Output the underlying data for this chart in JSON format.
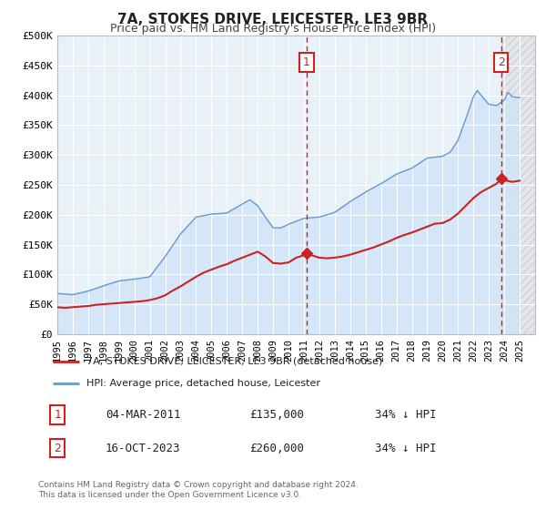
{
  "title": "7A, STOKES DRIVE, LEICESTER, LE3 9BR",
  "subtitle": "Price paid vs. HM Land Registry's House Price Index (HPI)",
  "background_color": "#ffffff",
  "plot_bg_color": "#e8f0f8",
  "grid_color": "#ffffff",
  "hpi_color": "#6699cc",
  "hpi_fill_color": "#d0e4f7",
  "price_color": "#cc2222",
  "marker_color": "#cc2222",
  "vline_color": "#cc2222",
  "annotation_box_color": "#cc2222",
  "ylim": [
    0,
    500000
  ],
  "xlim_start": 1995.0,
  "xlim_end": 2026.0,
  "yticks": [
    0,
    50000,
    100000,
    150000,
    200000,
    250000,
    300000,
    350000,
    400000,
    450000,
    500000
  ],
  "ytick_labels": [
    "£0",
    "£50K",
    "£100K",
    "£150K",
    "£200K",
    "£250K",
    "£300K",
    "£350K",
    "£400K",
    "£450K",
    "£500K"
  ],
  "xticks": [
    1995,
    1996,
    1997,
    1998,
    1999,
    2000,
    2001,
    2002,
    2003,
    2004,
    2005,
    2006,
    2007,
    2008,
    2009,
    2010,
    2011,
    2012,
    2013,
    2014,
    2015,
    2016,
    2017,
    2018,
    2019,
    2020,
    2021,
    2022,
    2023,
    2024,
    2025,
    2026
  ],
  "sale1_x": 2011.17,
  "sale1_y": 135000,
  "sale1_label": "1",
  "sale1_date": "04-MAR-2011",
  "sale1_price": "£135,000",
  "sale1_hpi": "34% ↓ HPI",
  "sale2_x": 2023.79,
  "sale2_y": 260000,
  "sale2_label": "2",
  "sale2_date": "16-OCT-2023",
  "sale2_price": "£260,000",
  "sale2_hpi": "34% ↓ HPI",
  "legend_label1": "7A, STOKES DRIVE, LEICESTER, LE3 9BR (detached house)",
  "legend_label2": "HPI: Average price, detached house, Leicester",
  "footer1": "Contains HM Land Registry data © Crown copyright and database right 2024.",
  "footer2": "This data is licensed under the Open Government Licence v3.0.",
  "hpi_data_x": [
    1995.0,
    1995.08,
    1995.17,
    1995.25,
    1995.33,
    1995.42,
    1995.5,
    1995.58,
    1995.67,
    1995.75,
    1995.83,
    1995.92,
    1996.0,
    1996.08,
    1996.17,
    1996.25,
    1996.33,
    1996.42,
    1996.5,
    1996.58,
    1996.67,
    1996.75,
    1996.83,
    1996.92,
    1997.0,
    1997.08,
    1997.17,
    1997.25,
    1997.33,
    1997.42,
    1997.5,
    1997.58,
    1997.67,
    1997.75,
    1997.83,
    1997.92,
    1998.0,
    1998.08,
    1998.17,
    1998.25,
    1998.33,
    1998.42,
    1998.5,
    1998.58,
    1998.67,
    1998.75,
    1998.83,
    1998.92,
    1999.0,
    1999.08,
    1999.17,
    1999.25,
    1999.33,
    1999.42,
    1999.5,
    1999.58,
    1999.67,
    1999.75,
    1999.83,
    1999.92,
    2000.0,
    2000.08,
    2000.17,
    2000.25,
    2000.33,
    2000.42,
    2000.5,
    2000.58,
    2000.67,
    2000.75,
    2000.83,
    2000.92,
    2001.0,
    2001.08,
    2001.17,
    2001.25,
    2001.33,
    2001.42,
    2001.5,
    2001.58,
    2001.67,
    2001.75,
    2001.83,
    2001.92,
    2002.0,
    2002.08,
    2002.17,
    2002.25,
    2002.33,
    2002.42,
    2002.5,
    2002.58,
    2002.67,
    2002.75,
    2002.83,
    2002.92,
    2003.0,
    2003.08,
    2003.17,
    2003.25,
    2003.33,
    2003.42,
    2003.5,
    2003.58,
    2003.67,
    2003.75,
    2003.83,
    2003.92,
    2004.0,
    2004.08,
    2004.17,
    2004.25,
    2004.33,
    2004.42,
    2004.5,
    2004.58,
    2004.67,
    2004.75,
    2004.83,
    2004.92,
    2005.0,
    2005.08,
    2005.17,
    2005.25,
    2005.33,
    2005.42,
    2005.5,
    2005.58,
    2005.67,
    2005.75,
    2005.83,
    2005.92,
    2006.0,
    2006.08,
    2006.17,
    2006.25,
    2006.33,
    2006.42,
    2006.5,
    2006.58,
    2006.67,
    2006.75,
    2006.83,
    2006.92,
    2007.0,
    2007.08,
    2007.17,
    2007.25,
    2007.33,
    2007.42,
    2007.5,
    2007.58,
    2007.67,
    2007.75,
    2007.83,
    2007.92,
    2008.0,
    2008.08,
    2008.17,
    2008.25,
    2008.33,
    2008.42,
    2008.5,
    2008.58,
    2008.67,
    2008.75,
    2008.83,
    2008.92,
    2009.0,
    2009.08,
    2009.17,
    2009.25,
    2009.33,
    2009.42,
    2009.5,
    2009.58,
    2009.67,
    2009.75,
    2009.83,
    2009.92,
    2010.0,
    2010.08,
    2010.17,
    2010.25,
    2010.33,
    2010.42,
    2010.5,
    2010.58,
    2010.67,
    2010.75,
    2010.83,
    2010.92,
    2011.0,
    2011.08,
    2011.17,
    2011.25,
    2011.33,
    2011.42,
    2011.5,
    2011.58,
    2011.67,
    2011.75,
    2011.83,
    2011.92,
    2012.0,
    2012.08,
    2012.17,
    2012.25,
    2012.33,
    2012.42,
    2012.5,
    2012.58,
    2012.67,
    2012.75,
    2012.83,
    2012.92,
    2013.0,
    2013.08,
    2013.17,
    2013.25,
    2013.33,
    2013.42,
    2013.5,
    2013.58,
    2013.67,
    2013.75,
    2013.83,
    2013.92,
    2014.0,
    2014.08,
    2014.17,
    2014.25,
    2014.33,
    2014.42,
    2014.5,
    2014.58,
    2014.67,
    2014.75,
    2014.83,
    2014.92,
    2015.0,
    2015.08,
    2015.17,
    2015.25,
    2015.33,
    2015.42,
    2015.5,
    2015.58,
    2015.67,
    2015.75,
    2015.83,
    2015.92,
    2016.0,
    2016.08,
    2016.17,
    2016.25,
    2016.33,
    2016.42,
    2016.5,
    2016.58,
    2016.67,
    2016.75,
    2016.83,
    2016.92,
    2017.0,
    2017.08,
    2017.17,
    2017.25,
    2017.33,
    2017.42,
    2017.5,
    2017.58,
    2017.67,
    2017.75,
    2017.83,
    2017.92,
    2018.0,
    2018.08,
    2018.17,
    2018.25,
    2018.33,
    2018.42,
    2018.5,
    2018.58,
    2018.67,
    2018.75,
    2018.83,
    2018.92,
    2019.0,
    2019.08,
    2019.17,
    2019.25,
    2019.33,
    2019.42,
    2019.5,
    2019.58,
    2019.67,
    2019.75,
    2019.83,
    2019.92,
    2020.0,
    2020.08,
    2020.17,
    2020.25,
    2020.33,
    2020.42,
    2020.5,
    2020.58,
    2020.67,
    2020.75,
    2020.83,
    2020.92,
    2021.0,
    2021.08,
    2021.17,
    2021.25,
    2021.33,
    2021.42,
    2021.5,
    2021.58,
    2021.67,
    2021.75,
    2021.83,
    2021.92,
    2022.0,
    2022.08,
    2022.17,
    2022.25,
    2022.33,
    2022.42,
    2022.5,
    2022.58,
    2022.67,
    2022.75,
    2022.83,
    2022.92,
    2023.0,
    2023.08,
    2023.17,
    2023.25,
    2023.33,
    2023.42,
    2023.5,
    2023.58,
    2023.67,
    2023.75,
    2023.83,
    2023.92,
    2024.0,
    2024.08,
    2024.17,
    2024.25,
    2024.33,
    2024.42,
    2024.5,
    2024.58,
    2024.67,
    2024.75,
    2024.83,
    2024.92,
    2025.0
  ],
  "price_data_x": [
    1995.0,
    1995.5,
    1996.0,
    1996.5,
    1997.0,
    1997.5,
    1998.0,
    1998.5,
    1999.0,
    1999.5,
    2000.0,
    2000.5,
    2001.0,
    2001.5,
    2002.0,
    2002.5,
    2003.0,
    2003.5,
    2004.0,
    2004.5,
    2005.0,
    2005.5,
    2006.0,
    2006.5,
    2007.0,
    2007.5,
    2008.0,
    2008.5,
    2009.0,
    2009.5,
    2010.0,
    2010.5,
    2011.0,
    2011.17,
    2011.5,
    2012.0,
    2012.5,
    2013.0,
    2013.5,
    2014.0,
    2014.5,
    2015.0,
    2015.5,
    2016.0,
    2016.5,
    2017.0,
    2017.5,
    2018.0,
    2018.5,
    2019.0,
    2019.5,
    2020.0,
    2020.5,
    2021.0,
    2021.5,
    2022.0,
    2022.5,
    2023.0,
    2023.5,
    2023.79,
    2024.0,
    2024.5,
    2025.0
  ],
  "price_data_y": [
    45000,
    44000,
    45000,
    46000,
    47000,
    49000,
    50000,
    51000,
    52000,
    53000,
    54000,
    55000,
    57000,
    60000,
    65000,
    73000,
    80000,
    88000,
    96000,
    103000,
    108000,
    113000,
    117000,
    123000,
    128000,
    133000,
    138000,
    130000,
    119000,
    118000,
    120000,
    128000,
    132000,
    135000,
    132000,
    128000,
    127000,
    128000,
    130000,
    133000,
    137000,
    141000,
    145000,
    150000,
    155000,
    161000,
    166000,
    170000,
    175000,
    180000,
    185000,
    186000,
    192000,
    202000,
    215000,
    228000,
    238000,
    245000,
    252000,
    260000,
    258000,
    255000,
    257000
  ]
}
